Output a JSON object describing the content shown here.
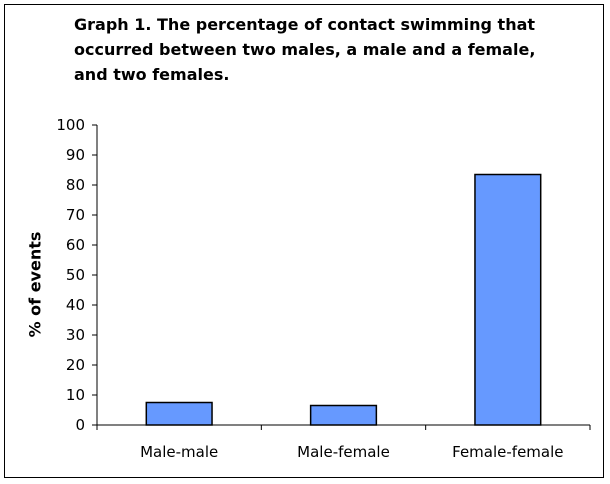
{
  "chart_data": {
    "type": "bar",
    "title": "Graph 1. The percentage of contact swimming that occurred between two males, a male and a female, and two females.",
    "ylabel": "% of events",
    "xlabel": "",
    "categories": [
      "Male-male",
      "Male-female",
      "Female-female"
    ],
    "values": [
      7.5,
      6.5,
      83.5
    ],
    "ylim": [
      0,
      100
    ],
    "yticks": [
      0,
      10,
      20,
      30,
      40,
      50,
      60,
      70,
      80,
      90,
      100
    ],
    "grid": false,
    "legend": "none",
    "colors": {
      "bar_fill": "#6699ff",
      "bar_stroke": "#000000",
      "axis": "#000000"
    }
  }
}
